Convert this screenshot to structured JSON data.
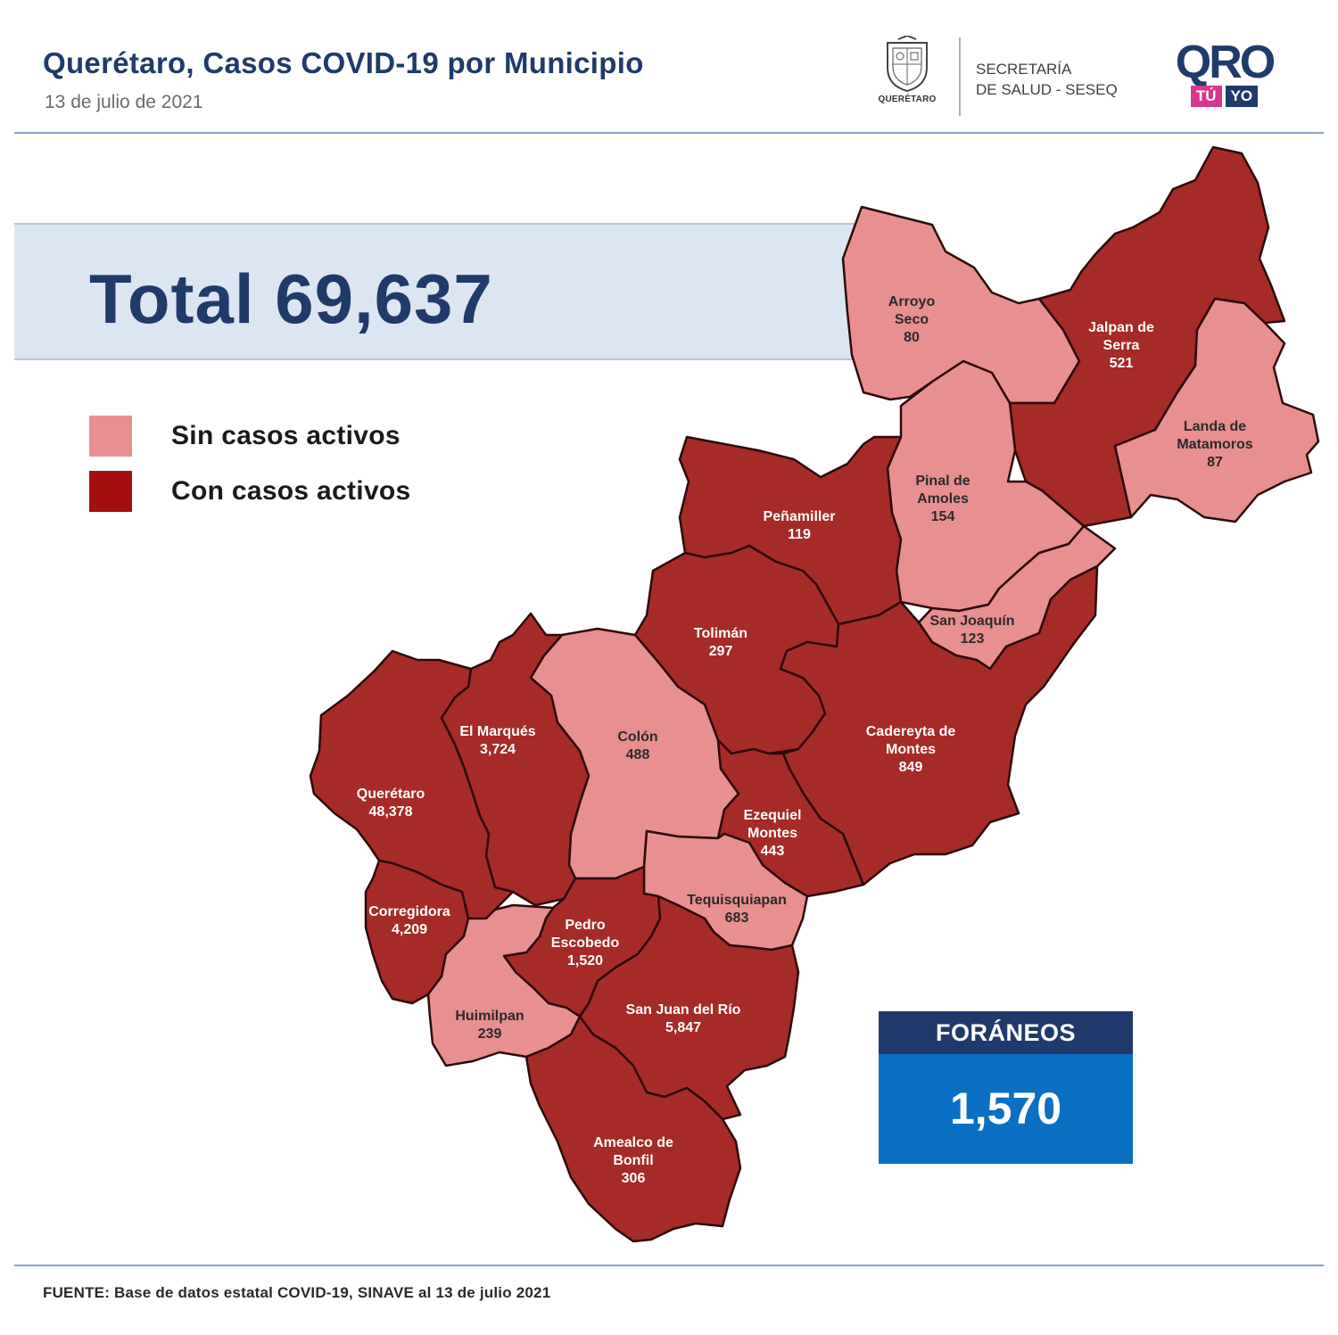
{
  "header": {
    "title": "Querétaro, Casos COVID-19 por Municipio",
    "date": "13 de julio de 2021",
    "seal_text": "QUERÉTARO",
    "department_line1": "SECRETARÍA",
    "department_line2": "DE SALUD - SESEQ",
    "logo_word": "QRO",
    "logo_tag_1": "TÚ",
    "logo_tag_2": "YO"
  },
  "total": {
    "text": "Total 69,637",
    "value": 69637
  },
  "legend": [
    {
      "label": "Sin casos activos",
      "color": "#e8908f"
    },
    {
      "label": "Con casos activos",
      "color": "#a50f12"
    }
  ],
  "colors": {
    "sin": "#e8908f",
    "con": "#a62a26",
    "border": "#2b0a0a"
  },
  "municipalities": [
    {
      "id": "arroyo-seco",
      "lines": [
        "Arroyo",
        "Seco",
        "80"
      ],
      "cases": 80,
      "status": "sin"
    },
    {
      "id": "jalpan",
      "lines": [
        "Jalpan de",
        "Serra",
        "521"
      ],
      "cases": 521,
      "status": "con"
    },
    {
      "id": "landa",
      "lines": [
        "Landa de",
        "Matamoros",
        "87"
      ],
      "cases": 87,
      "status": "sin"
    },
    {
      "id": "pinal",
      "lines": [
        "Pinal de",
        "Amoles",
        "154"
      ],
      "cases": 154,
      "status": "sin"
    },
    {
      "id": "penamiller",
      "lines": [
        "Peñamiller",
        "119"
      ],
      "cases": 119,
      "status": "con"
    },
    {
      "id": "san-joaquin",
      "lines": [
        "San Joaquín",
        "123"
      ],
      "cases": 123,
      "status": "sin"
    },
    {
      "id": "toliman",
      "lines": [
        "Tolimán",
        "297"
      ],
      "cases": 297,
      "status": "con"
    },
    {
      "id": "cadereyta",
      "lines": [
        "Cadereyta de",
        "Montes",
        "849"
      ],
      "cases": 849,
      "status": "con"
    },
    {
      "id": "colon",
      "lines": [
        "Colón",
        "488"
      ],
      "cases": 488,
      "status": "sin"
    },
    {
      "id": "el-marques",
      "lines": [
        "El  Marqués",
        "3,724"
      ],
      "cases": 3724,
      "status": "con"
    },
    {
      "id": "queretaro",
      "lines": [
        "Querétaro",
        "48,378"
      ],
      "cases": 48378,
      "status": "con"
    },
    {
      "id": "ezequiel",
      "lines": [
        "Ezequiel",
        "Montes",
        "443"
      ],
      "cases": 443,
      "status": "con"
    },
    {
      "id": "tequisquiapan",
      "lines": [
        "Tequisquiapan",
        "683"
      ],
      "cases": 683,
      "status": "sin"
    },
    {
      "id": "corregidora",
      "lines": [
        "Corregidora",
        "4,209"
      ],
      "cases": 4209,
      "status": "con"
    },
    {
      "id": "pedro-escobedo",
      "lines": [
        "Pedro",
        "Escobedo",
        "1,520"
      ],
      "cases": 1520,
      "status": "con"
    },
    {
      "id": "huimilpan",
      "lines": [
        "Huimilpan",
        "239"
      ],
      "cases": 239,
      "status": "sin"
    },
    {
      "id": "san-juan",
      "lines": [
        "San Juan del Río",
        "5,847"
      ],
      "cases": 5847,
      "status": "con"
    },
    {
      "id": "amealco",
      "lines": [
        "Amealco de",
        "Bonfil",
        "306"
      ],
      "cases": 306,
      "status": "con"
    }
  ],
  "foraneos": {
    "label": "FORÁNEOS",
    "value": "1,570"
  },
  "source": "FUENTE:  Base de datos estatal COVID-19,  SINAVE  al 13 de julio 2021"
}
